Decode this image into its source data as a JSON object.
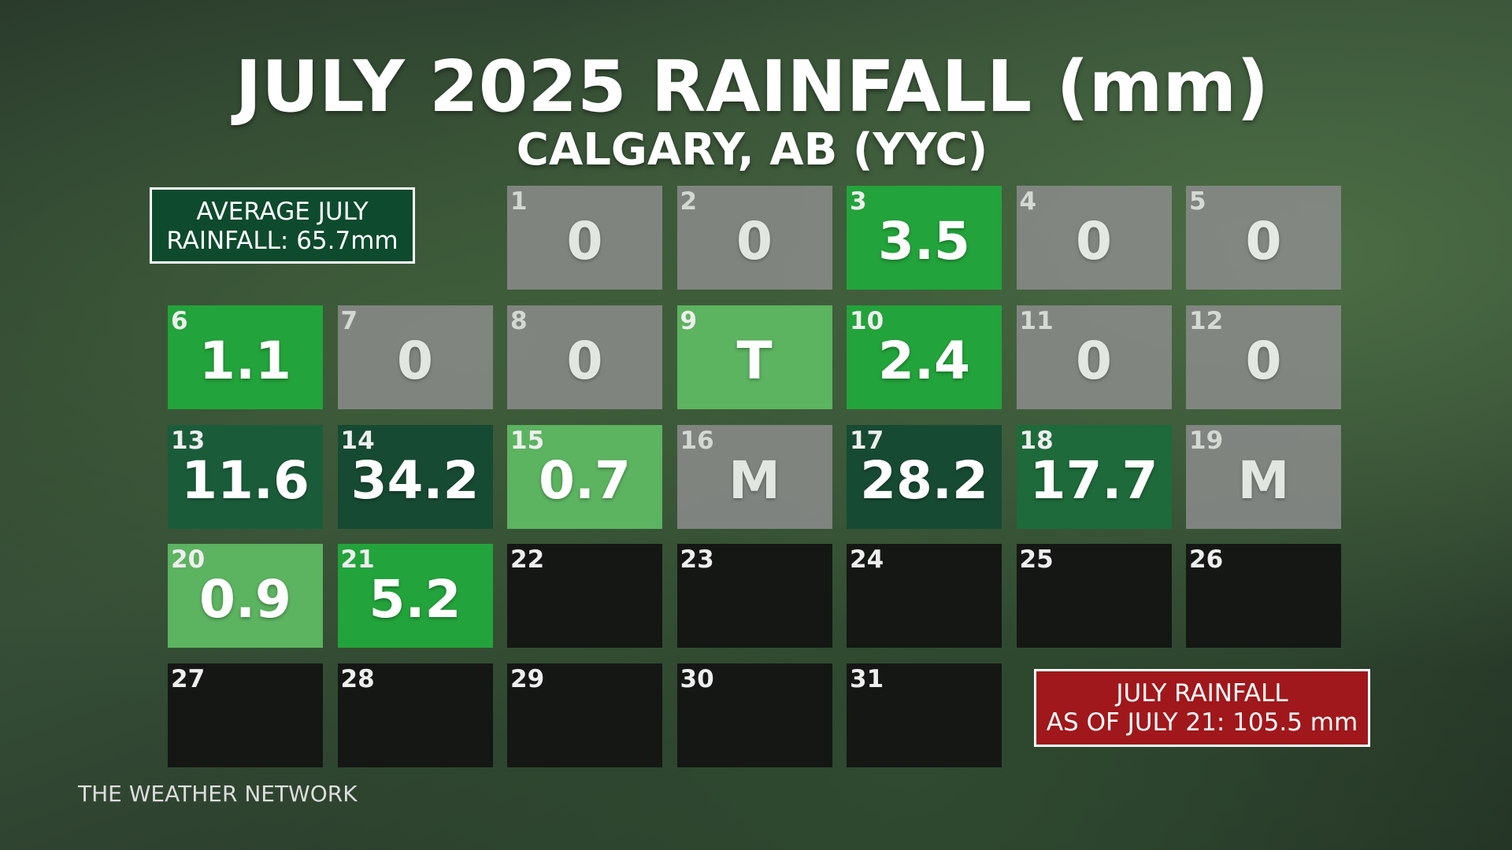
{
  "header": {
    "title": "JULY 2025 RAINFALL (mm)",
    "subtitle": "CALGARY, AB (YYC)"
  },
  "average_box": {
    "line1": "AVERAGE JULY",
    "line2": "RAINFALL: 65.7mm"
  },
  "total_box": {
    "line1": "JULY RAINFALL",
    "line2": "AS OF JULY 21: 105.5 mm"
  },
  "footer": "THE WEATHER NETWORK",
  "days": [
    {
      "day": 1,
      "value": 0,
      "color": "#8c8c8c"
    },
    {
      "day": 2,
      "value": 0,
      "color": "#8c8c8c"
    },
    {
      "day": 3,
      "value": 3.5,
      "color": "#23a33b"
    },
    {
      "day": 4,
      "value": 0,
      "color": "#8c8c8c"
    },
    {
      "day": 5,
      "value": 0,
      "color": "#8c8c8c"
    },
    {
      "day": 6,
      "value": 1.1,
      "color": "#23a33b"
    },
    {
      "day": 7,
      "value": 0,
      "color": "#8c8c8c"
    },
    {
      "day": 8,
      "value": 0,
      "color": "#8c8c8c"
    },
    {
      "day": 9,
      "value": "T",
      "color": "#5cb360"
    },
    {
      "day": 10,
      "value": 2.4,
      "color": "#23a33b"
    },
    {
      "day": 11,
      "value": 0,
      "color": "#8c8c8c"
    },
    {
      "day": 12,
      "value": 0,
      "color": "#8c8c8c"
    },
    {
      "day": 13,
      "value": 11.6,
      "color": "#1a5c3a"
    },
    {
      "day": 14,
      "value": 34.2,
      "color": "#174a33"
    },
    {
      "day": 15,
      "value": 0.7,
      "color": "#5cb360"
    },
    {
      "day": 16,
      "value": "M",
      "color": "#8c8c8c"
    },
    {
      "day": 17,
      "value": 28.2,
      "color": "#174a33"
    },
    {
      "day": 18,
      "value": 17.7,
      "color": "#1e6a3a"
    },
    {
      "day": 19,
      "value": "M",
      "color": "#8c8c8c"
    },
    {
      "day": 20,
      "value": 0.9,
      "color": "#5cb360"
    },
    {
      "day": 21,
      "value": 5.2,
      "color": "#23a33b"
    },
    {
      "day": 22,
      "color": "#141714"
    },
    {
      "day": 23,
      "color": "#141714"
    },
    {
      "day": 24,
      "color": "#141714"
    },
    {
      "day": 25,
      "color": "#141714"
    },
    {
      "day": 26,
      "color": "#141714"
    },
    {
      "day": 27,
      "color": "#141714"
    },
    {
      "day": 28,
      "color": "#141714"
    },
    {
      "day": 29,
      "color": "#141714"
    },
    {
      "day": 30,
      "color": "#141714"
    },
    {
      "day": 31,
      "color": "#141714"
    }
  ]
}
